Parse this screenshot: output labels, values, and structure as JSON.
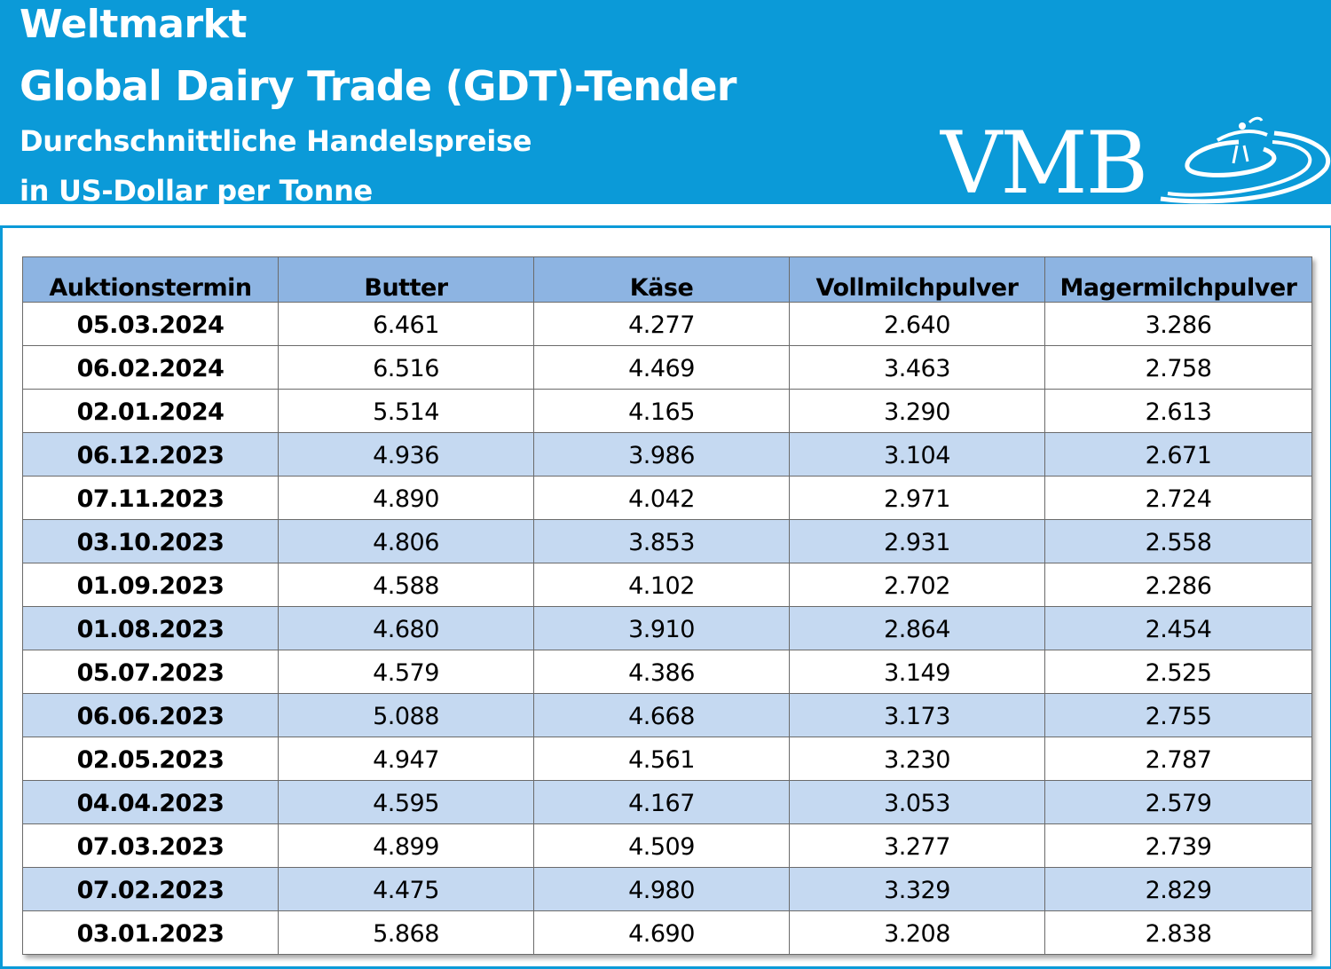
{
  "header": {
    "line1": "Weltmarkt",
    "line2": "Global Dairy Trade (GDT)-Tender",
    "line3": "Durchschnittliche Handelspreise",
    "line4": "in US-Dollar per Tonne",
    "brand_color": "#0b9ad8"
  },
  "logo": {
    "text": "VMB"
  },
  "table": {
    "columns": [
      "Auktionstermin",
      "Butter",
      "Käse",
      "Vollmilchpulver",
      "Magermilchpulver"
    ],
    "header_color": "#8db4e2",
    "shade_color": "#c5d9f1",
    "rows": [
      {
        "date": "05.03.2024",
        "butter": "6.461",
        "kaese": "4.277",
        "vmp": "2.640",
        "mmp": "3.286",
        "shaded": false
      },
      {
        "date": "06.02.2024",
        "butter": "6.516",
        "kaese": "4.469",
        "vmp": "3.463",
        "mmp": "2.758",
        "shaded": false
      },
      {
        "date": "02.01.2024",
        "butter": "5.514",
        "kaese": "4.165",
        "vmp": "3.290",
        "mmp": "2.613",
        "shaded": false
      },
      {
        "date": "06.12.2023",
        "butter": "4.936",
        "kaese": "3.986",
        "vmp": "3.104",
        "mmp": "2.671",
        "shaded": true
      },
      {
        "date": "07.11.2023",
        "butter": "4.890",
        "kaese": "4.042",
        "vmp": "2.971",
        "mmp": "2.724",
        "shaded": false
      },
      {
        "date": "03.10.2023",
        "butter": "4.806",
        "kaese": "3.853",
        "vmp": "2.931",
        "mmp": "2.558",
        "shaded": true
      },
      {
        "date": "01.09.2023",
        "butter": "4.588",
        "kaese": "4.102",
        "vmp": "2.702",
        "mmp": "2.286",
        "shaded": false
      },
      {
        "date": "01.08.2023",
        "butter": "4.680",
        "kaese": "3.910",
        "vmp": "2.864",
        "mmp": "2.454",
        "shaded": true
      },
      {
        "date": "05.07.2023",
        "butter": "4.579",
        "kaese": "4.386",
        "vmp": "3.149",
        "mmp": "2.525",
        "shaded": false
      },
      {
        "date": "06.06.2023",
        "butter": "5.088",
        "kaese": "4.668",
        "vmp": "3.173",
        "mmp": "2.755",
        "shaded": true
      },
      {
        "date": "02.05.2023",
        "butter": "4.947",
        "kaese": "4.561",
        "vmp": "3.230",
        "mmp": "2.787",
        "shaded": false
      },
      {
        "date": "04.04.2023",
        "butter": "4.595",
        "kaese": "4.167",
        "vmp": "3.053",
        "mmp": "2.579",
        "shaded": true
      },
      {
        "date": "07.03.2023",
        "butter": "4.899",
        "kaese": "4.509",
        "vmp": "3.277",
        "mmp": "2.739",
        "shaded": false
      },
      {
        "date": "07.02.2023",
        "butter": "4.475",
        "kaese": "4.980",
        "vmp": "3.329",
        "mmp": "2.829",
        "shaded": true
      },
      {
        "date": "03.01.2023",
        "butter": "5.868",
        "kaese": "4.690",
        "vmp": "3.208",
        "mmp": "2.838",
        "shaded": false
      }
    ]
  }
}
